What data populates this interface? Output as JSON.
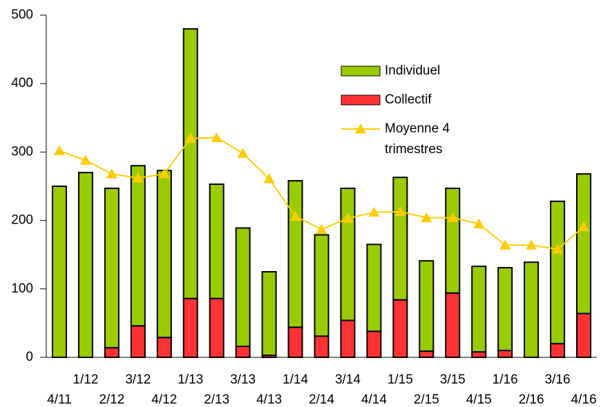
{
  "chart_data": {
    "type": "bar",
    "stacked": true,
    "categories": [
      "4/11",
      "1/12",
      "2/12",
      "3/12",
      "4/12",
      "1/13",
      "2/13",
      "3/13",
      "4/13",
      "1/14",
      "2/14",
      "3/14",
      "4/14",
      "1/15",
      "2/15",
      "3/15",
      "4/15",
      "1/16",
      "2/16",
      "3/16",
      "4/16"
    ],
    "series": [
      {
        "name": "Individuel",
        "color": "#99cc00",
        "type": "bar",
        "values": [
          250,
          270,
          233,
          234,
          244,
          394,
          167,
          173,
          122,
          214,
          148,
          193,
          127,
          179,
          132,
          153,
          125,
          121,
          139,
          208,
          204
        ]
      },
      {
        "name": "Collectif",
        "color": "#ff3333",
        "type": "bar",
        "values": [
          0,
          0,
          14,
          46,
          29,
          86,
          86,
          16,
          3,
          44,
          31,
          54,
          38,
          84,
          9,
          94,
          8,
          10,
          0,
          20,
          64
        ]
      },
      {
        "name": "Moyenne 4 trimestres",
        "color": "#ffcc00",
        "type": "line",
        "values": [
          302,
          288,
          268,
          262,
          268,
          320,
          321,
          298,
          261,
          206,
          187,
          203,
          212,
          213,
          204,
          204,
          195,
          164,
          164,
          158,
          191
        ]
      }
    ],
    "ylim": [
      0,
      500
    ],
    "yticks": [
      0,
      100,
      200,
      300,
      400,
      500
    ],
    "grid": false,
    "legend": "top-right"
  }
}
